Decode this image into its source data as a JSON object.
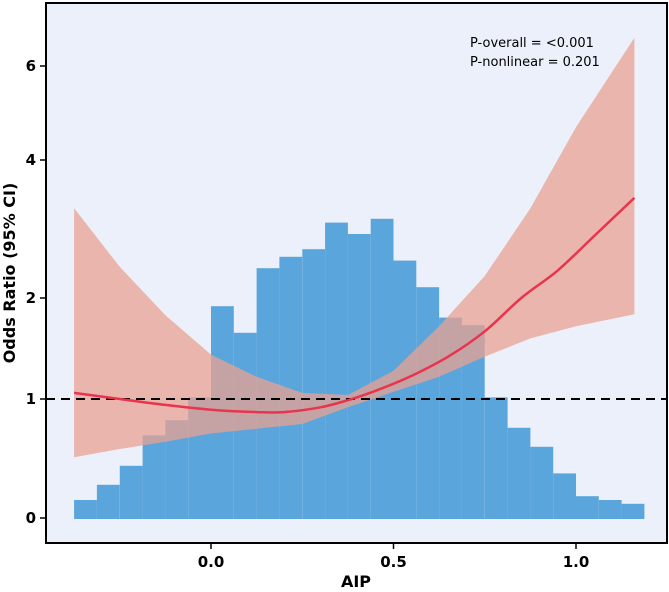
{
  "chart_data": {
    "type": "line",
    "xlabel": "AIP",
    "ylabel": "Odds Ratio (95% CI)",
    "xlim": [
      -0.45,
      1.25
    ],
    "x_ticks": [
      0.0,
      0.5,
      1.0
    ],
    "x_tick_labels": [
      "0.0",
      "0.5",
      "1.0"
    ],
    "y_ticks": [
      0,
      1,
      2,
      4,
      6
    ],
    "y_tick_labels": [
      "0",
      "1",
      "2",
      "4",
      "6"
    ],
    "y_scale_note": "nonlinear odds-ratio axis; tick values as printed",
    "reference_line": {
      "y": 1,
      "style": "dashed",
      "color": "#000000"
    },
    "annotations": [
      "P-overall = <0.001",
      "P-nonlinear = 0.201"
    ],
    "histogram": {
      "bin_width": 0.0625,
      "bins_start": [
        -0.375,
        -0.3125,
        -0.25,
        -0.1875,
        -0.125,
        -0.0625,
        0.0,
        0.0625,
        0.125,
        0.1875,
        0.25,
        0.3125,
        0.375,
        0.4375,
        0.5,
        0.5625,
        0.625,
        0.6875,
        0.75,
        0.8125,
        0.875,
        0.9375,
        1.0,
        1.0625,
        1.125
      ],
      "relative_heights": [
        0.05,
        0.09,
        0.14,
        0.22,
        0.26,
        0.32,
        0.56,
        0.49,
        0.66,
        0.69,
        0.71,
        0.78,
        0.75,
        0.79,
        0.68,
        0.61,
        0.53,
        0.51,
        0.32,
        0.24,
        0.19,
        0.12,
        0.06,
        0.05,
        0.04
      ]
    },
    "series": [
      {
        "name": "Odds ratio",
        "color": "#e8344d",
        "x": [
          -0.375,
          -0.25,
          -0.125,
          0.0,
          0.125,
          0.2,
          0.3,
          0.375,
          0.45,
          0.55,
          0.65,
          0.75,
          0.85,
          0.95,
          1.05,
          1.16
        ],
        "y": [
          1.06,
          1.0,
          0.95,
          0.91,
          0.89,
          0.89,
          0.93,
          0.99,
          1.08,
          1.23,
          1.42,
          1.67,
          2.0,
          2.4,
          2.9,
          3.45
        ]
      }
    ],
    "ci_band": {
      "color": "#e9a191",
      "x": [
        -0.375,
        -0.25,
        -0.125,
        0.0,
        0.125,
        0.25,
        0.375,
        0.5,
        0.625,
        0.75,
        0.875,
        1.0,
        1.16
      ],
      "lower": [
        0.51,
        0.58,
        0.64,
        0.71,
        0.75,
        0.79,
        0.93,
        1.07,
        1.22,
        1.42,
        1.6,
        1.72,
        1.84
      ],
      "upper": [
        3.3,
        2.45,
        1.83,
        1.44,
        1.22,
        1.06,
        1.04,
        1.28,
        1.72,
        2.32,
        3.3,
        4.7,
        6.6
      ]
    },
    "colors": {
      "plot_background": "#ebf0fa",
      "histogram": "#5aa5dc",
      "ci_band": "#e9a191",
      "curve": "#e8344d"
    }
  }
}
